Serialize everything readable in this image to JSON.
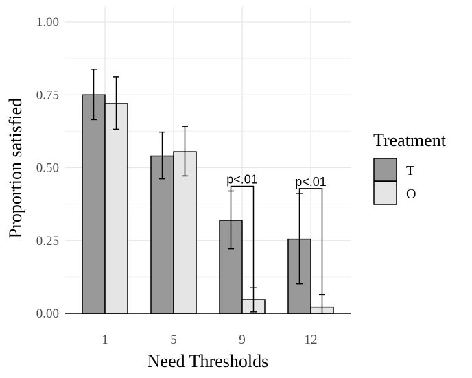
{
  "chart_data": {
    "type": "bar",
    "title": "",
    "xlabel": "Need Thresholds",
    "ylabel": "Proportion satisfied",
    "categories": [
      "1",
      "5",
      "9",
      "12"
    ],
    "ylim": [
      0,
      1
    ],
    "yticks": [
      "0.00",
      "0.25",
      "0.50",
      "0.75",
      "1.00"
    ],
    "grid": true,
    "legend": {
      "title": "Treatment",
      "position": "right"
    },
    "series": [
      {
        "name": "T",
        "color": "#999999",
        "values": [
          0.75,
          0.54,
          0.32,
          0.255
        ],
        "err_low": [
          0.665,
          0.462,
          0.222,
          0.102
        ],
        "err_high": [
          0.838,
          0.622,
          0.42,
          0.412
        ]
      },
      {
        "name": "O",
        "color": "#e5e5e5",
        "values": [
          0.72,
          0.555,
          0.047,
          0.022
        ],
        "err_low": [
          0.632,
          0.472,
          0.005,
          0.0
        ],
        "err_high": [
          0.812,
          0.642,
          0.09,
          0.065
        ]
      }
    ],
    "annotations": [
      {
        "category": "9",
        "text": "p<.01"
      },
      {
        "category": "12",
        "text": "p<.01"
      }
    ]
  }
}
